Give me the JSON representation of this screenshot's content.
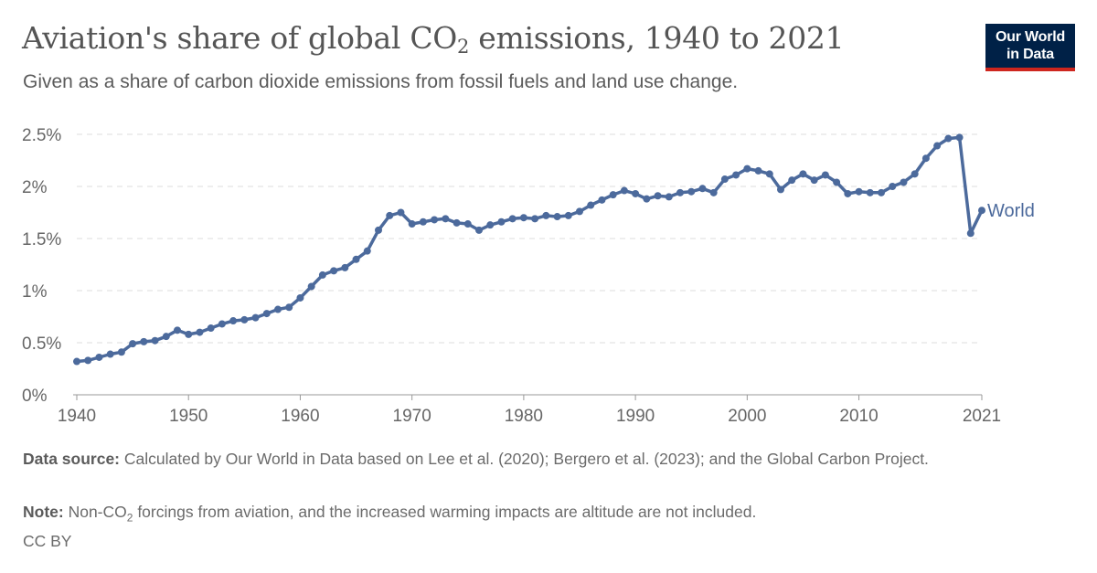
{
  "header": {
    "title_main": "Aviation's share of global CO",
    "title_sub": "2",
    "title_tail": " emissions, 1940 to 2021",
    "subtitle": "Given as a share of carbon dioxide emissions from fossil fuels and land use change."
  },
  "logo": {
    "line1": "Our World",
    "line2": "in Data"
  },
  "footer": {
    "source_label": "Data source:",
    "source_text": " Calculated by Our World in Data based on Lee et al. (2020); Bergero et al. (2023); and the Global Carbon Project.",
    "note_label": "Note:",
    "note_text_a": " Non-CO",
    "note_text_sub": "2",
    "note_text_b": " forcings from aviation, and the increased warming impacts are altitude are not included.",
    "license": "CC BY"
  },
  "colors": {
    "series": "#4c6a9c",
    "grid": "#dddddd",
    "logo_bg": "#002147",
    "logo_accent": "#ce261e"
  },
  "chart_data": {
    "type": "line",
    "title": "Aviation's share of global CO₂ emissions, 1940 to 2021",
    "ylabel": "",
    "xlabel": "",
    "xlim": [
      1940,
      2021
    ],
    "ylim": [
      0,
      2.5
    ],
    "y_ticks": [
      {
        "value": 0,
        "label": "0%"
      },
      {
        "value": 0.5,
        "label": "0.5%"
      },
      {
        "value": 1,
        "label": "1%"
      },
      {
        "value": 1.5,
        "label": "1.5%"
      },
      {
        "value": 2,
        "label": "2%"
      },
      {
        "value": 2.5,
        "label": "2.5%"
      }
    ],
    "x_ticks": [
      {
        "value": 1940,
        "label": "1940"
      },
      {
        "value": 1950,
        "label": "1950"
      },
      {
        "value": 1960,
        "label": "1960"
      },
      {
        "value": 1970,
        "label": "1970"
      },
      {
        "value": 1980,
        "label": "1980"
      },
      {
        "value": 1990,
        "label": "1990"
      },
      {
        "value": 2000,
        "label": "2000"
      },
      {
        "value": 2010,
        "label": "2010"
      },
      {
        "value": 2021,
        "label": "2021"
      }
    ],
    "grid": true,
    "series": [
      {
        "name": "World",
        "x": [
          1940,
          1941,
          1942,
          1943,
          1944,
          1945,
          1946,
          1947,
          1948,
          1949,
          1950,
          1951,
          1952,
          1953,
          1954,
          1955,
          1956,
          1957,
          1958,
          1959,
          1960,
          1961,
          1962,
          1963,
          1964,
          1965,
          1966,
          1967,
          1968,
          1969,
          1970,
          1971,
          1972,
          1973,
          1974,
          1975,
          1976,
          1977,
          1978,
          1979,
          1980,
          1981,
          1982,
          1983,
          1984,
          1985,
          1986,
          1987,
          1988,
          1989,
          1990,
          1991,
          1992,
          1993,
          1994,
          1995,
          1996,
          1997,
          1998,
          1999,
          2000,
          2001,
          2002,
          2003,
          2004,
          2005,
          2006,
          2007,
          2008,
          2009,
          2010,
          2011,
          2012,
          2013,
          2014,
          2015,
          2016,
          2017,
          2018,
          2019,
          2020,
          2021
        ],
        "values": [
          0.32,
          0.33,
          0.36,
          0.39,
          0.41,
          0.49,
          0.51,
          0.52,
          0.56,
          0.62,
          0.58,
          0.6,
          0.64,
          0.68,
          0.71,
          0.72,
          0.74,
          0.78,
          0.82,
          0.84,
          0.93,
          1.04,
          1.15,
          1.19,
          1.22,
          1.3,
          1.38,
          1.58,
          1.72,
          1.75,
          1.64,
          1.66,
          1.68,
          1.69,
          1.65,
          1.64,
          1.58,
          1.63,
          1.66,
          1.69,
          1.7,
          1.69,
          1.72,
          1.71,
          1.72,
          1.76,
          1.82,
          1.87,
          1.92,
          1.96,
          1.93,
          1.88,
          1.91,
          1.9,
          1.94,
          1.95,
          1.98,
          1.94,
          2.07,
          2.11,
          2.17,
          2.15,
          2.12,
          1.97,
          2.06,
          2.12,
          2.06,
          2.11,
          2.04,
          1.93,
          1.95,
          1.94,
          1.94,
          2.0,
          2.04,
          2.12,
          2.27,
          2.39,
          2.46,
          2.47,
          1.55,
          1.77
        ]
      }
    ]
  }
}
